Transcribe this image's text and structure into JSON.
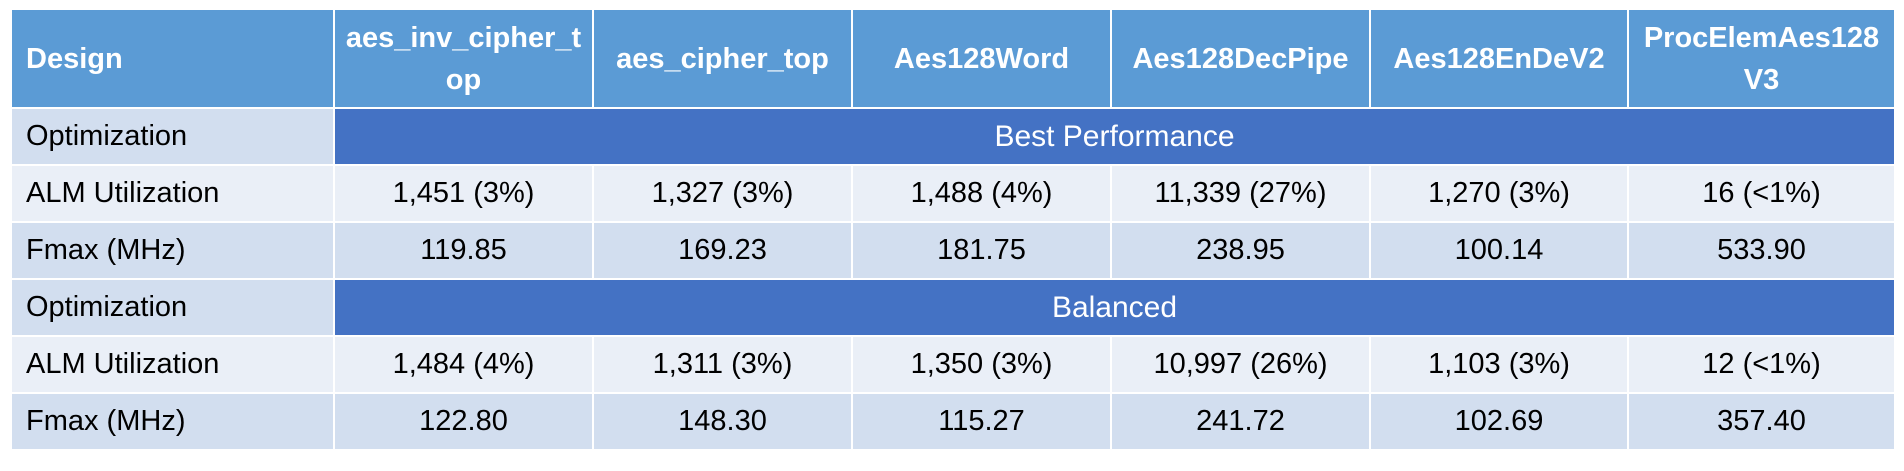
{
  "header": {
    "design_label": "Design",
    "columns": [
      "aes_inv_cipher_top",
      "aes_cipher_top",
      "Aes128Word",
      "Aes128DecPipe",
      "Aes128EnDeV2",
      "ProcElemAes128V3"
    ]
  },
  "sections": [
    {
      "optimization_label": "Optimization",
      "optimization_value": "Best Performance",
      "alm_label": "ALM Utilization",
      "alm": [
        "1,451 (3%)",
        "1,327 (3%)",
        "1,488 (4%)",
        "11,339 (27%)",
        "1,270 (3%)",
        "16 (<1%)"
      ],
      "fmax_label": "Fmax (MHz)",
      "fmax": [
        "119.85",
        "169.23",
        "181.75",
        "238.95",
        "100.14",
        "533.90"
      ]
    },
    {
      "optimization_label": "Optimization",
      "optimization_value": "Balanced",
      "alm_label": "ALM Utilization",
      "alm": [
        "1,484 (4%)",
        "1,311 (3%)",
        "1,350 (3%)",
        "10,997 (26%)",
        "1,103 (3%)",
        "12 (<1%)"
      ],
      "fmax_label": "Fmax (MHz)",
      "fmax": [
        "122.80",
        "148.30",
        "115.27",
        "241.72",
        "102.69",
        "357.40"
      ]
    }
  ],
  "colors": {
    "header": "#5b9bd5",
    "banner": "#4472c4",
    "row_dark": "#d2deef",
    "row_light": "#eaeff7"
  }
}
